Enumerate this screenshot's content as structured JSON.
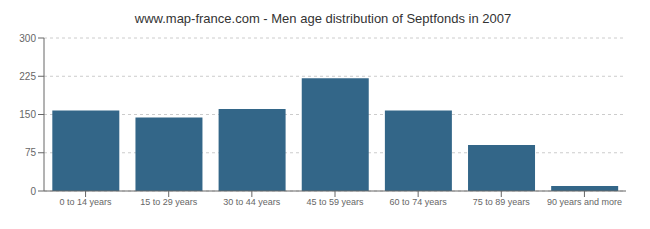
{
  "chart_data": {
    "type": "bar",
    "title": "www.map-france.com - Men age distribution of Septfonds in 2007",
    "categories": [
      "0 to 14 years",
      "15 to 29 years",
      "30 to 44 years",
      "45 to 59 years",
      "60 to 74 years",
      "75 to 89 years",
      "90 years and more"
    ],
    "values": [
      158,
      144,
      161,
      221,
      158,
      90,
      10
    ],
    "color": "#336688",
    "ylim": [
      0,
      300
    ],
    "yticks": [
      0,
      75,
      150,
      225,
      300
    ],
    "grid": true
  }
}
